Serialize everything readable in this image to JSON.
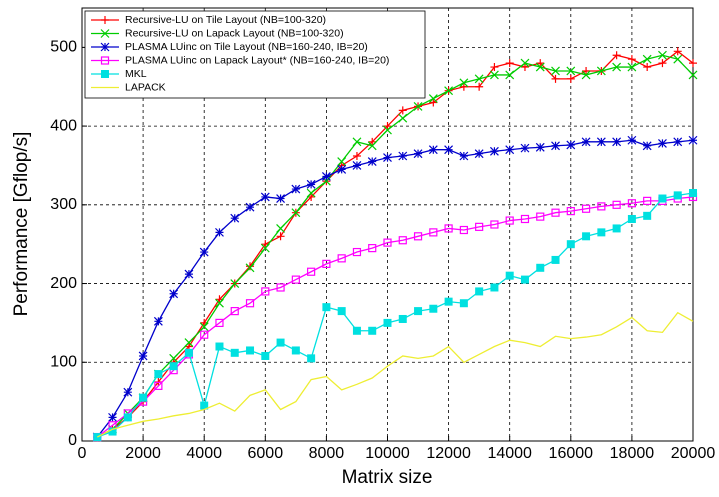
{
  "chart_data": {
    "type": "line",
    "xlabel": "Matrix size",
    "ylabel": "Performance [Gflop/s]",
    "x": [
      500,
      1000,
      1500,
      2000,
      2500,
      3000,
      3500,
      4000,
      4500,
      5000,
      5500,
      6000,
      6500,
      7000,
      7500,
      8000,
      8500,
      9000,
      9500,
      10000,
      10500,
      11000,
      11500,
      12000,
      12500,
      13000,
      13500,
      14000,
      14500,
      15000,
      15500,
      16000,
      16500,
      17000,
      17500,
      18000,
      18500,
      19000,
      19500,
      20000
    ],
    "xlim": [
      0,
      20000
    ],
    "xticks": [
      0,
      2000,
      4000,
      6000,
      8000,
      10000,
      12000,
      14000,
      16000,
      18000,
      20000
    ],
    "ylim": [
      0,
      550
    ],
    "yticks": [
      0,
      100,
      200,
      300,
      400,
      500
    ],
    "grid": true,
    "legend": "upper-left",
    "series": [
      {
        "name": "Recursive-LU on Tile Layout (NB=100-320)",
        "color": "#ff0000",
        "marker": "+",
        "values": [
          5,
          15,
          30,
          50,
          75,
          100,
          120,
          150,
          180,
          200,
          222,
          250,
          260,
          290,
          310,
          330,
          350,
          362,
          380,
          400,
          420,
          425,
          430,
          445,
          450,
          450,
          475,
          480,
          475,
          480,
          460,
          460,
          470,
          470,
          490,
          485,
          475,
          480,
          495,
          480
        ]
      },
      {
        "name": "Recursive-LU on Lapack Layout (NB=100-320)",
        "color": "#00cc00",
        "marker": "x",
        "values": [
          5,
          15,
          35,
          55,
          85,
          105,
          125,
          145,
          175,
          200,
          220,
          245,
          270,
          290,
          315,
          330,
          355,
          380,
          375,
          395,
          410,
          425,
          435,
          445,
          455,
          460,
          465,
          465,
          480,
          475,
          470,
          470,
          465,
          470,
          475,
          475,
          485,
          490,
          485,
          465
        ]
      },
      {
        "name": "PLASMA LUinc on Tile Layout (NB=160-240, IB=20)",
        "color": "#0000cc",
        "marker": "*",
        "values": [
          5,
          30,
          62,
          108,
          152,
          187,
          212,
          240,
          265,
          283,
          297,
          310,
          308,
          320,
          326,
          336,
          345,
          350,
          355,
          360,
          362,
          365,
          370,
          370,
          362,
          365,
          368,
          370,
          372,
          373,
          375,
          376,
          380,
          380,
          380,
          382,
          375,
          378,
          380,
          382
        ]
      },
      {
        "name": "PLASMA LUinc on Lapack Layout* (NB=160-240, IB=20)",
        "color": "#ff00ff",
        "marker": "s",
        "values": [
          5,
          20,
          35,
          50,
          70,
          90,
          110,
          135,
          150,
          165,
          175,
          190,
          195,
          205,
          215,
          225,
          232,
          240,
          245,
          252,
          255,
          260,
          265,
          270,
          268,
          272,
          275,
          280,
          282,
          285,
          290,
          292,
          295,
          298,
          300,
          302,
          305,
          305,
          308,
          310
        ]
      },
      {
        "name": "MKL",
        "color": "#00e0e0",
        "marker": "S",
        "values": [
          5,
          12,
          30,
          55,
          85,
          95,
          112,
          45,
          120,
          112,
          115,
          108,
          125,
          115,
          105,
          170,
          165,
          140,
          140,
          150,
          155,
          165,
          168,
          177,
          175,
          190,
          195,
          210,
          205,
          220,
          230,
          250,
          260,
          265,
          270,
          282,
          286,
          308,
          312,
          315
        ]
      },
      {
        "name": "LAPACK",
        "color": "#eeee33",
        "values": [
          5,
          15,
          20,
          25,
          28,
          32,
          35,
          40,
          48,
          38,
          58,
          65,
          40,
          50,
          78,
          82,
          65,
          72,
          80,
          95,
          108,
          105,
          108,
          120,
          100,
          110,
          120,
          128,
          125,
          120,
          133,
          130,
          132,
          135,
          145,
          157,
          140,
          138,
          163,
          152
        ]
      }
    ]
  }
}
